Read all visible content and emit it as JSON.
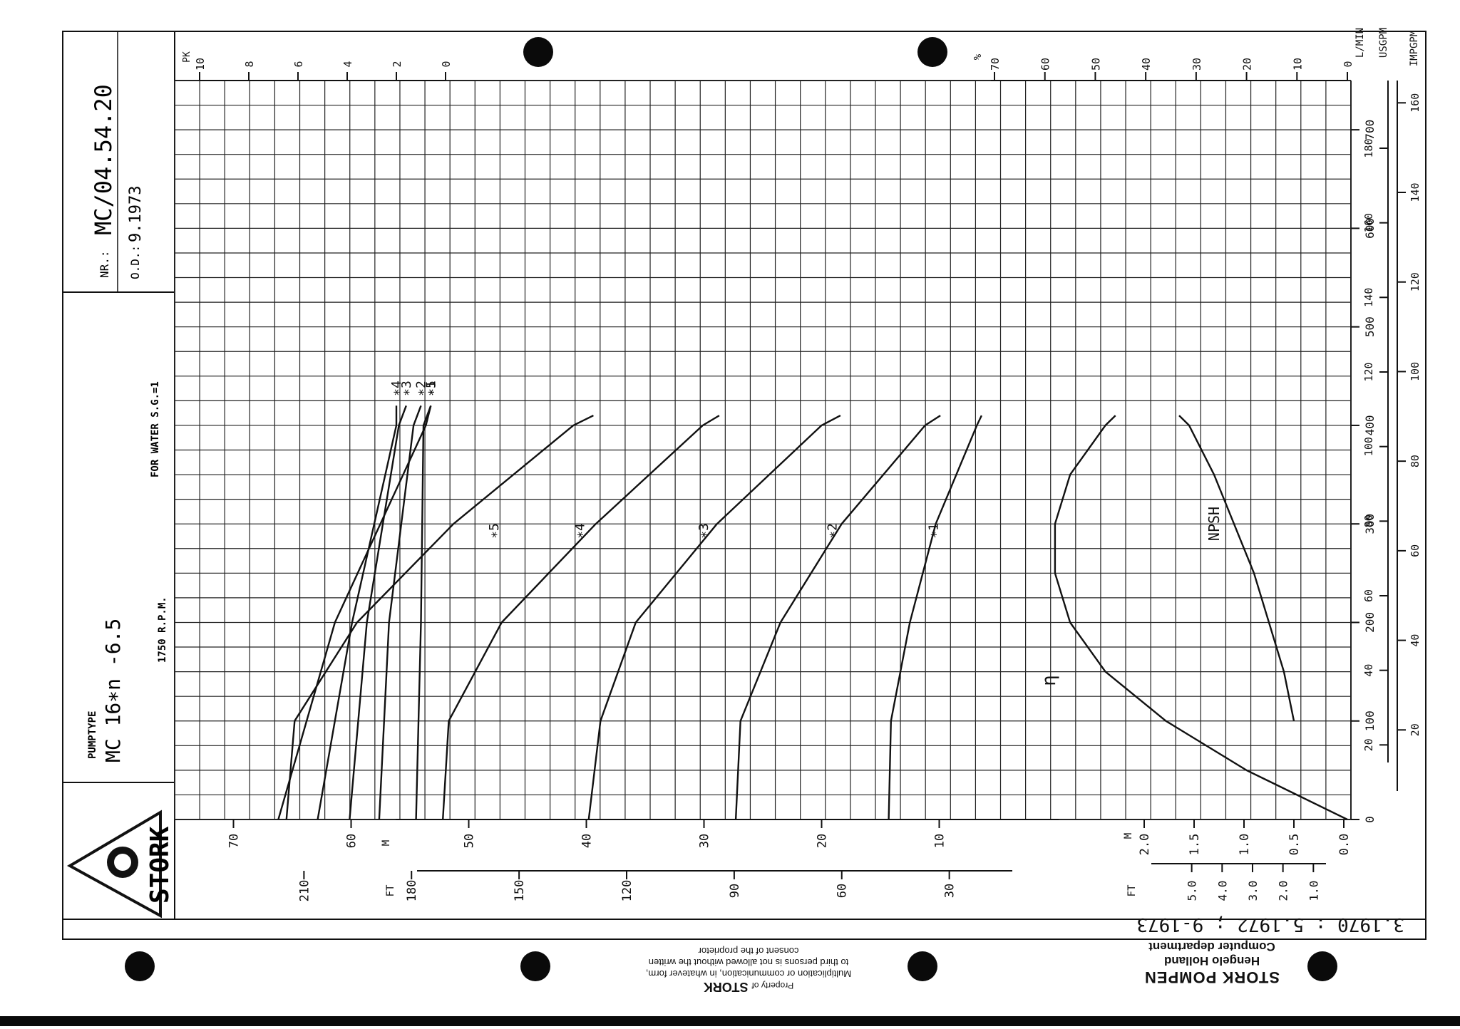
{
  "header": {
    "nr_label": "NR.:",
    "nr_value": "MC/04.54.20",
    "date_label": "O.D.:",
    "date_value": "9.1973",
    "pumptype_label": "PUMPTYPE",
    "pumptype_value": "MC 16∗n -6.5",
    "rpm": "1750 R.P.M.",
    "fluid": "FOR WATER S.G.=1",
    "brand": "STORK",
    "revisions": "3.1970 : 5.1972 ; 9-1973"
  },
  "footer": {
    "company": "STORK POMPEN",
    "city": "Hengelo Holland",
    "dept": "Computer department",
    "property_prefix": "Property of",
    "property_brand": "STORK",
    "notice_1": "Multiplication or communication, in whatever form,",
    "notice_2": "to third persons is not allowed without the written",
    "notice_3": "consent of the proprietor"
  },
  "chart_data": {
    "type": "line",
    "x_axes": {
      "L/MIN": [
        "0",
        "100",
        "200",
        "300",
        "400",
        "500",
        "600",
        "700"
      ],
      "USGPM": [
        "20",
        "40",
        "60",
        "80",
        "100",
        "120",
        "140",
        "160",
        "180"
      ],
      "IMPGPM": [
        "20",
        "40",
        "60",
        "80",
        "100",
        "120",
        "140",
        "160"
      ]
    },
    "x_axis_labels": {
      "lmin": "L/MIN",
      "usgpm": "USGPM",
      "impgpm": "IMPGPM"
    },
    "head_axis_m": [
      "70",
      "60",
      "50",
      "40",
      "30",
      "20",
      "10"
    ],
    "head_axis_ft": [
      "210",
      "180",
      "150",
      "120",
      "90",
      "60",
      "30"
    ],
    "npsh_axis_m": [
      "2.0",
      "1.5",
      "1.0",
      "0.5",
      "0.0"
    ],
    "npsh_axis_ft": [
      "5.0",
      "4.0",
      "3.0",
      "2.0",
      "1.0"
    ],
    "power_axis_pk": [
      "10",
      "8",
      "6",
      "4",
      "2",
      "0"
    ],
    "efficiency_axis_pct": [
      "70",
      "60",
      "50",
      "40",
      "30",
      "20",
      "10",
      "0"
    ],
    "axis_units": {
      "m": "M",
      "ft": "FT",
      "pk": "PK",
      "pct": "%"
    },
    "head_series": [
      {
        "name": "∗5",
        "x": [
          0,
          100,
          200,
          300,
          400,
          410
        ],
        "y": [
          65.5,
          64.8,
          59.5,
          51.3,
          41.1,
          39.4
        ]
      },
      {
        "name": "∗4",
        "x": [
          0,
          100,
          200,
          300,
          400,
          410
        ],
        "y": [
          52.2,
          51.7,
          47.2,
          39.2,
          30.1,
          28.7
        ]
      },
      {
        "name": "∗3",
        "x": [
          0,
          100,
          200,
          300,
          400,
          410
        ],
        "y": [
          39.8,
          38.8,
          35.8,
          28.9,
          20.0,
          18.4
        ]
      },
      {
        "name": "∗2",
        "x": [
          0,
          100,
          200,
          300,
          400,
          410
        ],
        "y": [
          27.3,
          26.9,
          23.5,
          18.3,
          11.2,
          9.9
        ]
      },
      {
        "name": "∗1",
        "x": [
          0,
          100,
          200,
          300,
          400,
          410
        ],
        "y": [
          14.3,
          14.1,
          12.5,
          10.3,
          6.8,
          6.4
        ]
      }
    ],
    "power_series": [
      {
        "name": "∗5",
        "x": [
          0,
          200,
          400,
          420
        ],
        "y": [
          6.8,
          4.5,
          0.8,
          0.6
        ]
      },
      {
        "name": "∗4",
        "x": [
          0,
          200,
          400,
          420
        ],
        "y": [
          5.2,
          3.8,
          2.0,
          2.0
        ]
      },
      {
        "name": "∗3",
        "x": [
          0,
          200,
          400,
          420
        ],
        "y": [
          3.9,
          3.2,
          1.9,
          1.6
        ]
      },
      {
        "name": "∗2",
        "x": [
          0,
          200,
          400,
          420
        ],
        "y": [
          2.7,
          2.3,
          1.3,
          1.0
        ]
      },
      {
        "name": "∗1",
        "x": [
          0,
          200,
          400,
          420
        ],
        "y": [
          1.2,
          1.0,
          0.9,
          0.6
        ]
      }
    ],
    "efficiency_series": {
      "name": "η",
      "x": [
        0,
        50,
        100,
        150,
        200,
        250,
        300,
        350,
        400,
        410
      ],
      "y": [
        0,
        20,
        36,
        48,
        55,
        58,
        58,
        55,
        48,
        46
      ]
    },
    "npsh_series": {
      "name": "NPSH",
      "x": [
        100,
        150,
        200,
        250,
        300,
        350,
        400,
        410
      ],
      "y": [
        0.5,
        0.6,
        0.75,
        0.9,
        1.1,
        1.3,
        1.55,
        1.65
      ]
    },
    "labels": {
      "npsh": "NPSH",
      "eta": "η"
    },
    "grid": true
  }
}
